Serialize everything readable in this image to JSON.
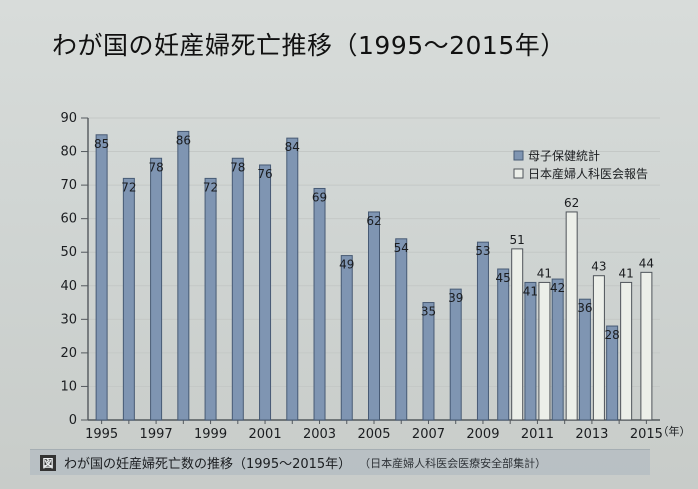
{
  "header": {
    "title": "わが国の妊産婦死亡推移（1995～2015年）"
  },
  "caption": {
    "figure_mark": "図",
    "title": "わが国の妊産婦死亡数の推移（1995～2015年）",
    "source": "（日本産婦人科医会医療安全部集計）"
  },
  "colors": {
    "series_1_fill": "#7f95b2",
    "series_1_stroke": "#475a74",
    "series_2_fill": "#ecefe9",
    "series_2_stroke": "#4e5359",
    "grid": "#c4c8c6",
    "axis": "#53585d",
    "text": "#1b1d20",
    "background": "#d7dbd8"
  },
  "chart_data": {
    "type": "bar",
    "categories": [
      "1995",
      "1996",
      "1997",
      "1998",
      "1999",
      "2000",
      "2001",
      "2002",
      "2003",
      "2004",
      "2005",
      "2006",
      "2007",
      "2008",
      "2009",
      "2010",
      "2011",
      "2012",
      "2013",
      "2014",
      "2015"
    ],
    "x_tick_labels": [
      "1995",
      "",
      "1997",
      "",
      "1999",
      "",
      "2001",
      "",
      "2003",
      "",
      "2005",
      "",
      "2007",
      "",
      "2009",
      "",
      "2011",
      "",
      "2013",
      "",
      "2015"
    ],
    "x_unit": "（年）",
    "series": [
      {
        "name": "母子保健統計",
        "values": [
          85,
          72,
          78,
          86,
          72,
          78,
          76,
          84,
          69,
          49,
          62,
          54,
          35,
          39,
          53,
          45,
          41,
          42,
          36,
          28,
          null
        ],
        "labels": [
          "85",
          "72",
          "78",
          "86",
          "72",
          "78",
          "76",
          "84",
          "69",
          "49",
          "62",
          "54",
          "35",
          "39",
          "53",
          "45",
          "41",
          "42",
          "36",
          "28",
          ""
        ]
      },
      {
        "name": "日本産婦人科医会報告",
        "values": [
          null,
          null,
          null,
          null,
          null,
          null,
          null,
          null,
          null,
          null,
          null,
          null,
          null,
          null,
          null,
          51,
          41,
          62,
          43,
          41,
          44
        ],
        "labels": [
          "",
          "",
          "",
          "",
          "",
          "",
          "",
          "",
          "",
          "",
          "",
          "",
          "",
          "",
          "",
          "51",
          "41",
          "62",
          "43",
          "41",
          "44"
        ]
      }
    ],
    "y_ticks": [
      "0",
      "10",
      "20",
      "30",
      "40",
      "50",
      "60",
      "70",
      "80",
      "90"
    ],
    "ylim": [
      0,
      90
    ],
    "grid": true,
    "legend_position": "right"
  }
}
